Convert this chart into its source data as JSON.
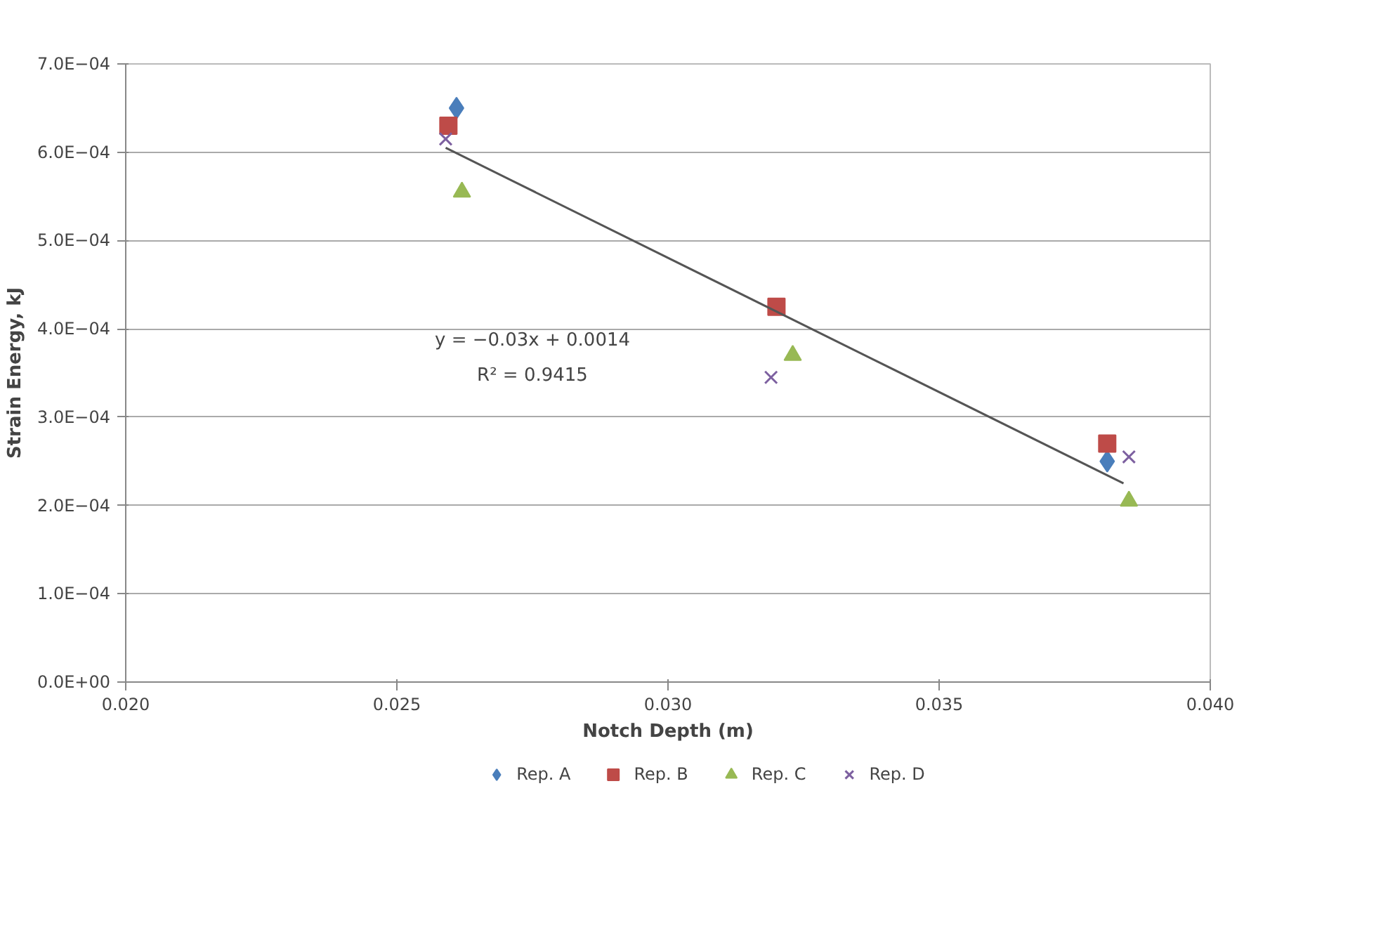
{
  "chart_data": {
    "type": "scatter",
    "xlabel": "Notch Depth (m)",
    "ylabel": "Strain Energy, kJ",
    "xlim": [
      0.02,
      0.04
    ],
    "xticks": [
      {
        "value": 0.02,
        "label": "0.020"
      },
      {
        "value": 0.025,
        "label": "0.025"
      },
      {
        "value": 0.03,
        "label": "0.030"
      },
      {
        "value": 0.035,
        "label": "0.035"
      },
      {
        "value": 0.04,
        "label": "0.040"
      }
    ],
    "ylim": [
      0,
      0.0007
    ],
    "yticks": [
      {
        "value": 0,
        "label": "0.0E+00"
      },
      {
        "value": 0.0001,
        "label": "1.0E−04"
      },
      {
        "value": 0.0002,
        "label": "2.0E−04"
      },
      {
        "value": 0.0003,
        "label": "3.0E−04"
      },
      {
        "value": 0.0004,
        "label": "4.0E−04"
      },
      {
        "value": 0.0005,
        "label": "5.0E−04"
      },
      {
        "value": 0.0006,
        "label": "6.0E−04"
      },
      {
        "value": 0.0007,
        "label": "7.0E−04"
      }
    ],
    "grid": "y",
    "legend": "bottom",
    "series": [
      {
        "name": "Rep. A",
        "color": "#4a7ebb",
        "marker": "diamond",
        "x": [
          0.0261,
          0.0319,
          0.0381
        ],
        "values": [
          0.00065,
          null,
          0.00025
        ]
      },
      {
        "name": "Rep. B",
        "color": "#be4b48",
        "marker": "square",
        "x": [
          0.02595,
          0.032,
          0.0381
        ],
        "values": [
          0.00063,
          0.000425,
          0.00027
        ]
      },
      {
        "name": "Rep. C",
        "color": "#98b954",
        "marker": "triangle",
        "x": [
          0.0262,
          0.0323,
          0.0385
        ],
        "values": [
          0.000555,
          0.00037,
          0.000205
        ]
      },
      {
        "name": "Rep. D",
        "color": "#7d60a0",
        "marker": "cross",
        "x": [
          0.0259,
          0.0319,
          0.0385
        ],
        "values": [
          0.000615,
          0.000345,
          0.000255
        ]
      },
      {
        "type": "line",
        "color": "#555555",
        "x": [
          0.0259,
          0.0384
        ],
        "values": [
          0.000605,
          0.000225
        ]
      }
    ],
    "annotations": [
      "y = −0.03x + 0.0014",
      "R² = 0.9415"
    ]
  }
}
